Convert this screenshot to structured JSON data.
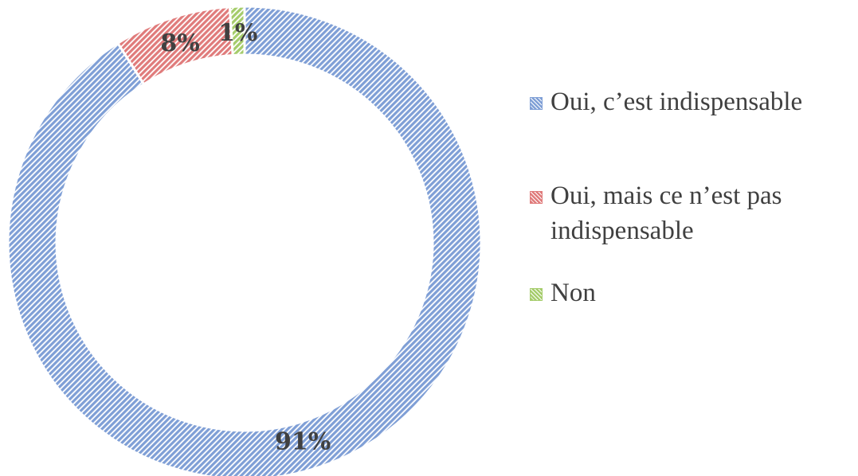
{
  "chart_data": {
    "type": "donut",
    "categories": [
      "Oui, c’est indispensable",
      "Oui, mais ce n’est pas indispensable",
      "Non"
    ],
    "values": [
      91,
      8,
      1
    ],
    "value_labels": [
      "91%",
      "8%",
      "1%"
    ],
    "colors": [
      "#7f9fd6",
      "#e07b7b",
      "#a5cc6b"
    ],
    "legend": "right"
  }
}
